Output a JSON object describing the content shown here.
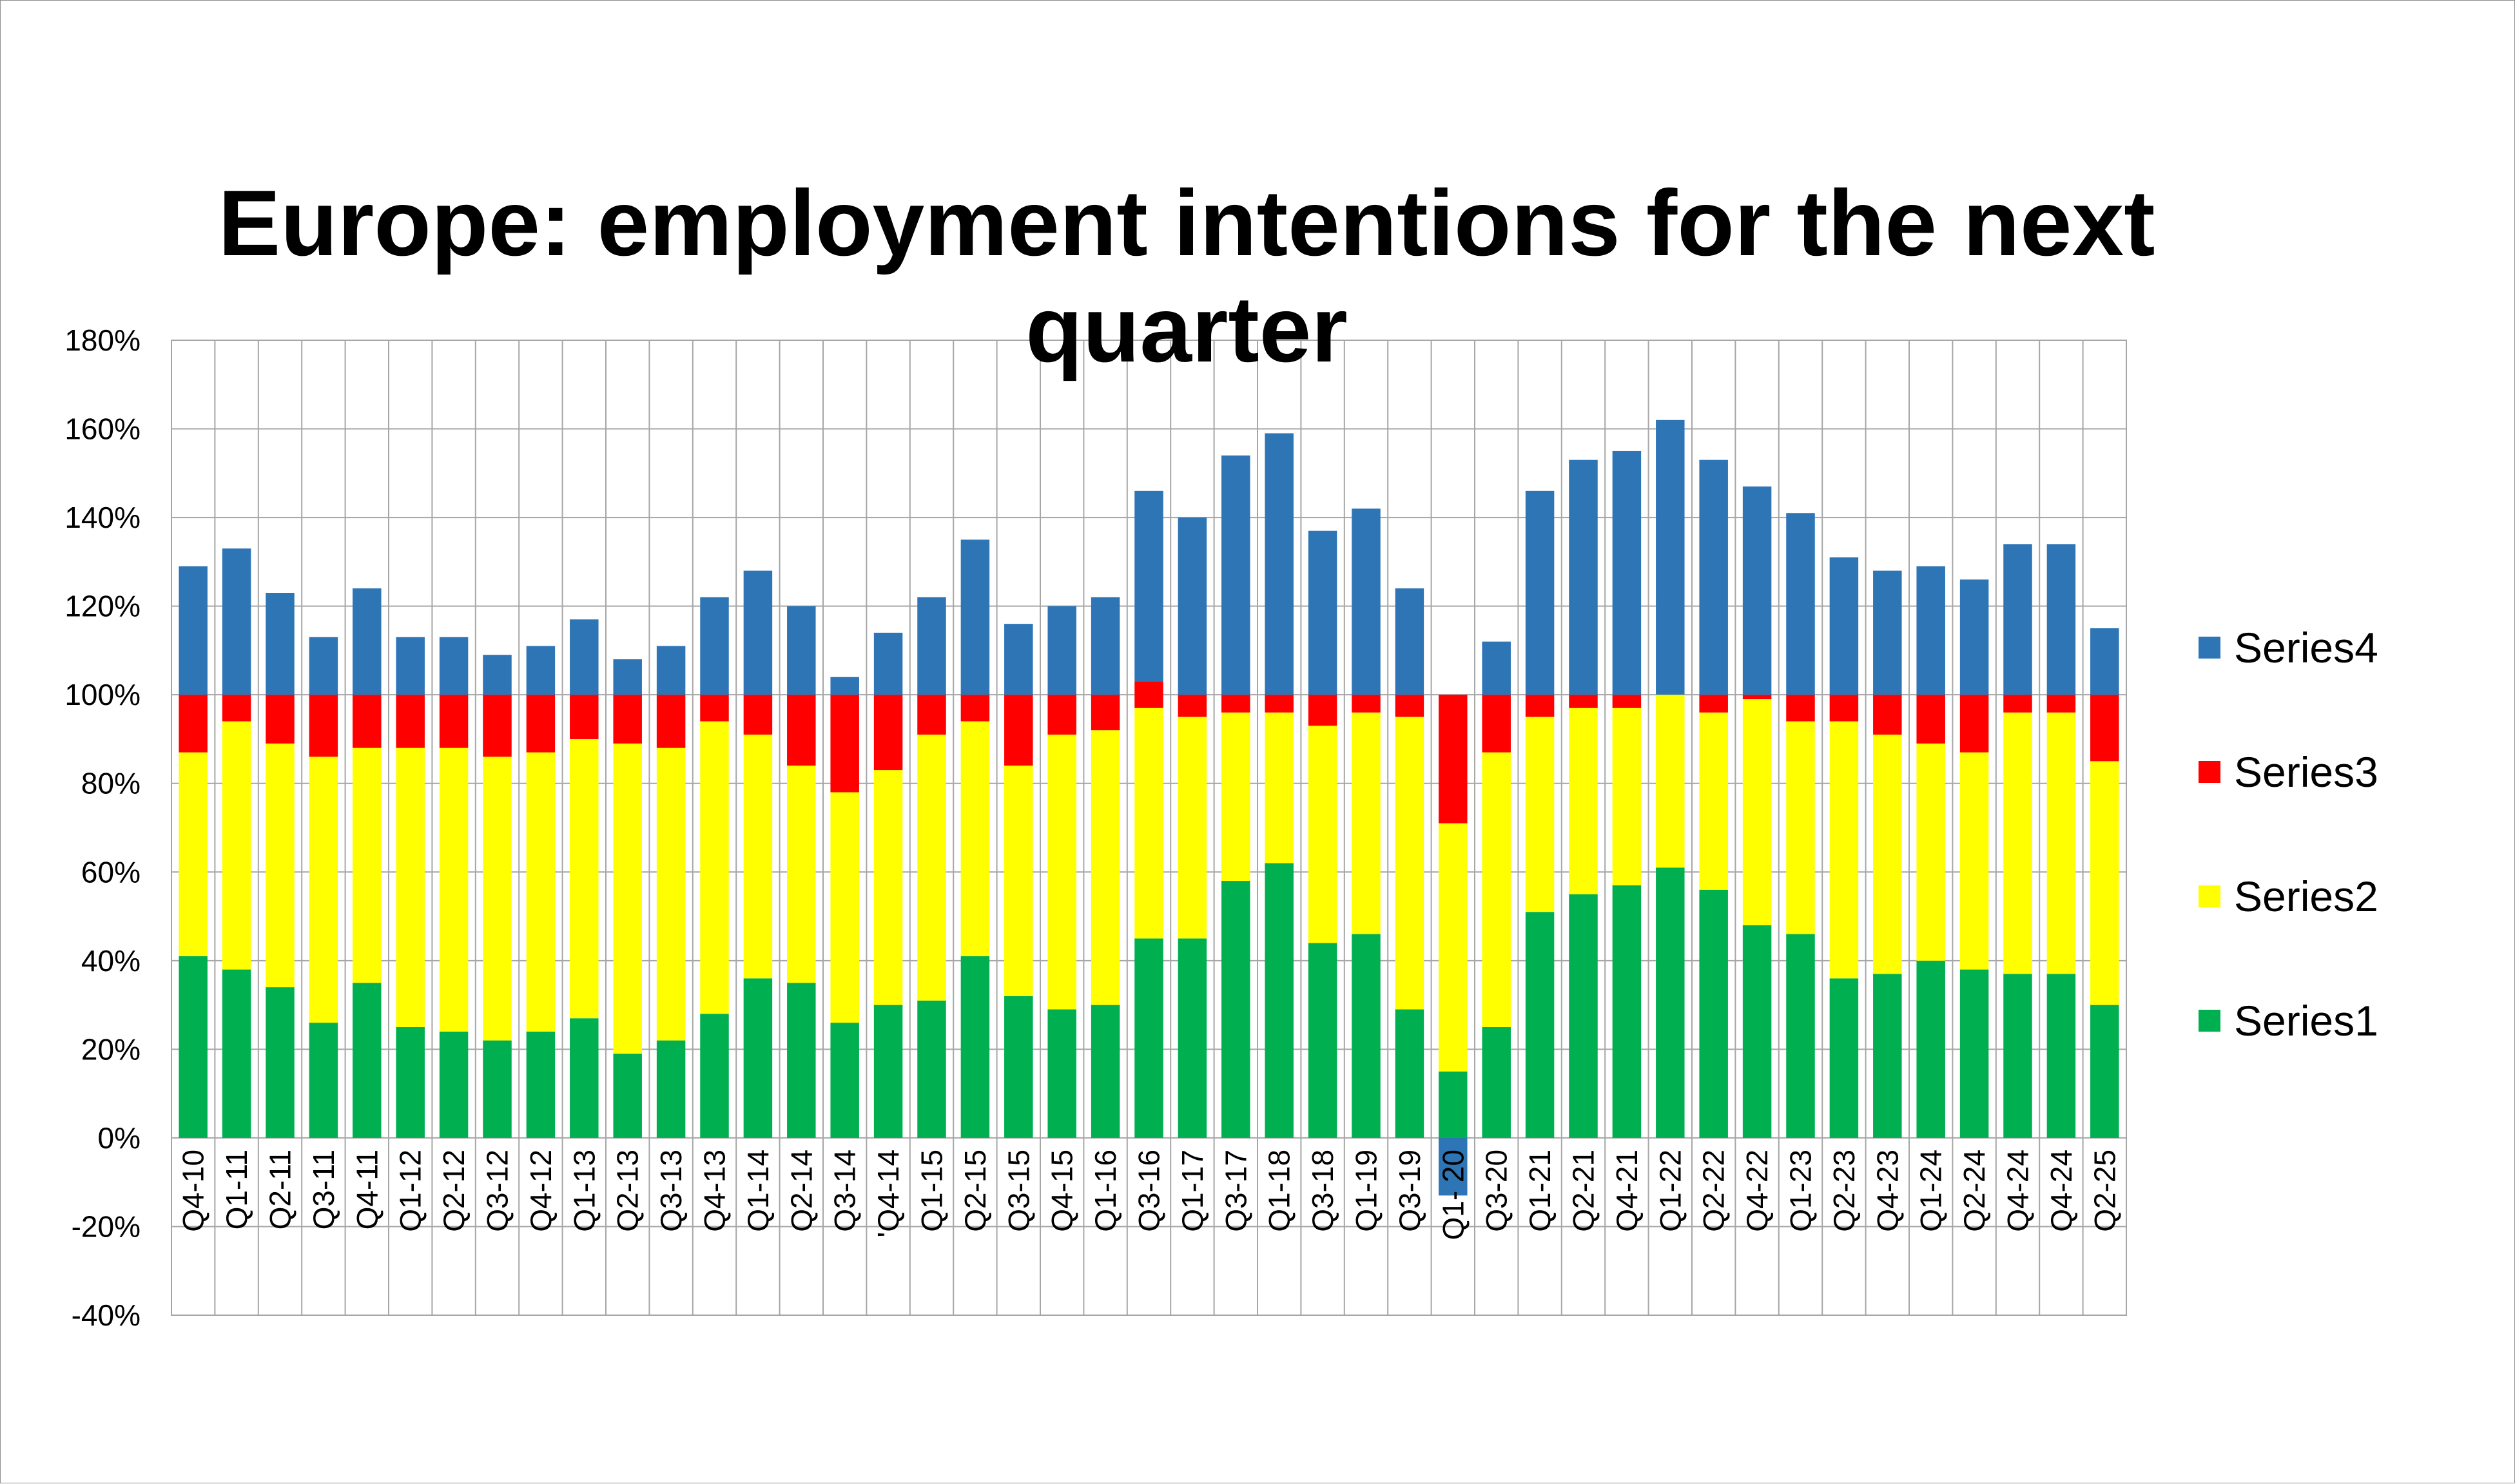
{
  "chart_data": {
    "type": "bar",
    "stacked": true,
    "title_lines": [
      "Europe: employment intentions for the next",
      "quarter"
    ],
    "xlabel": "",
    "ylabel": "",
    "ylim": [
      -0.4,
      1.8
    ],
    "y_ticks": [
      -0.4,
      -0.2,
      0,
      0.2,
      0.4,
      0.6,
      0.8,
      1.0,
      1.2,
      1.4,
      1.6,
      1.8
    ],
    "y_tick_labels": [
      "-40%",
      "-20%",
      "0%",
      "20%",
      "40%",
      "60%",
      "80%",
      "100%",
      "120%",
      "140%",
      "160%",
      "180%"
    ],
    "grid": true,
    "legend_position": "right",
    "categories": [
      "Q4-10",
      "Q1-11",
      "Q2-11",
      "Q3-11",
      "Q4-11",
      "Q1-12",
      "Q2-12",
      "Q3-12",
      "Q4-12",
      "Q1-13",
      "Q2-13",
      "Q3-13",
      "Q4-13",
      "Q1-14",
      "Q2-14",
      "Q3-14",
      "'Q4-14",
      "Q1-15",
      "Q2-15",
      "Q3-15",
      "Q4-15",
      "Q1-16",
      "Q3-16",
      "Q1-17",
      "Q3-17",
      "Q1-18",
      "Q3-18",
      "Q1-19",
      "Q3-19",
      "Q1- 20",
      "Q3-20",
      "Q1-21",
      "Q2-21",
      "Q4-21",
      "Q1-22",
      "Q2-22",
      "Q4-22",
      "Q1-23",
      "Q2-23",
      "Q4-23",
      "Q1-24",
      "Q2-24",
      "Q4-24",
      "Q4-24",
      "Q2-25"
    ],
    "series": [
      {
        "name": "Series1",
        "color": "#00b050",
        "values": [
          0.41,
          0.38,
          0.34,
          0.26,
          0.35,
          0.25,
          0.24,
          0.22,
          0.24,
          0.27,
          0.19,
          0.22,
          0.28,
          0.36,
          0.35,
          0.26,
          0.3,
          0.31,
          0.41,
          0.32,
          0.29,
          0.3,
          0.45,
          0.45,
          0.58,
          0.62,
          0.44,
          0.46,
          0.29,
          0.15,
          0.25,
          0.51,
          0.55,
          0.57,
          0.61,
          0.56,
          0.48,
          0.46,
          0.36,
          0.37,
          0.4,
          0.38,
          0.37,
          0.37,
          0.3
        ]
      },
      {
        "name": "Series2",
        "color": "#ffff00",
        "values": [
          0.46,
          0.56,
          0.55,
          0.6,
          0.53,
          0.63,
          0.64,
          0.64,
          0.63,
          0.63,
          0.7,
          0.66,
          0.66,
          0.55,
          0.49,
          0.52,
          0.53,
          0.6,
          0.53,
          0.52,
          0.62,
          0.62,
          0.52,
          0.5,
          0.38,
          0.34,
          0.49,
          0.5,
          0.66,
          0.56,
          0.62,
          0.44,
          0.42,
          0.4,
          0.39,
          0.4,
          0.51,
          0.48,
          0.58,
          0.54,
          0.49,
          0.49,
          0.59,
          0.59,
          0.55
        ]
      },
      {
        "name": "Series3",
        "color": "#ff0000",
        "values": [
          0.13,
          0.06,
          0.11,
          0.14,
          0.12,
          0.12,
          0.12,
          0.14,
          0.13,
          0.1,
          0.11,
          0.12,
          0.06,
          0.09,
          0.16,
          0.22,
          0.17,
          0.09,
          0.06,
          0.16,
          0.09,
          0.08,
          0.06,
          0.05,
          0.04,
          0.04,
          0.07,
          0.04,
          0.05,
          0.29,
          0.13,
          0.05,
          0.03,
          0.03,
          0.0,
          0.04,
          0.01,
          0.06,
          0.06,
          0.09,
          0.11,
          0.13,
          0.04,
          0.04,
          0.15
        ]
      },
      {
        "name": "Series4",
        "color": "#2e75b6",
        "values": [
          0.29,
          0.33,
          0.23,
          0.13,
          0.24,
          0.13,
          0.13,
          0.09,
          0.11,
          0.17,
          0.08,
          0.11,
          0.22,
          0.28,
          0.2,
          0.04,
          0.14,
          0.22,
          0.35,
          0.16,
          0.2,
          0.22,
          0.43,
          0.4,
          0.54,
          0.59,
          0.37,
          0.42,
          0.24,
          -0.13,
          0.12,
          0.46,
          0.53,
          0.55,
          0.62,
          0.53,
          0.47,
          0.41,
          0.31,
          0.28,
          0.29,
          0.26,
          0.34,
          0.34,
          0.15
        ]
      }
    ]
  }
}
